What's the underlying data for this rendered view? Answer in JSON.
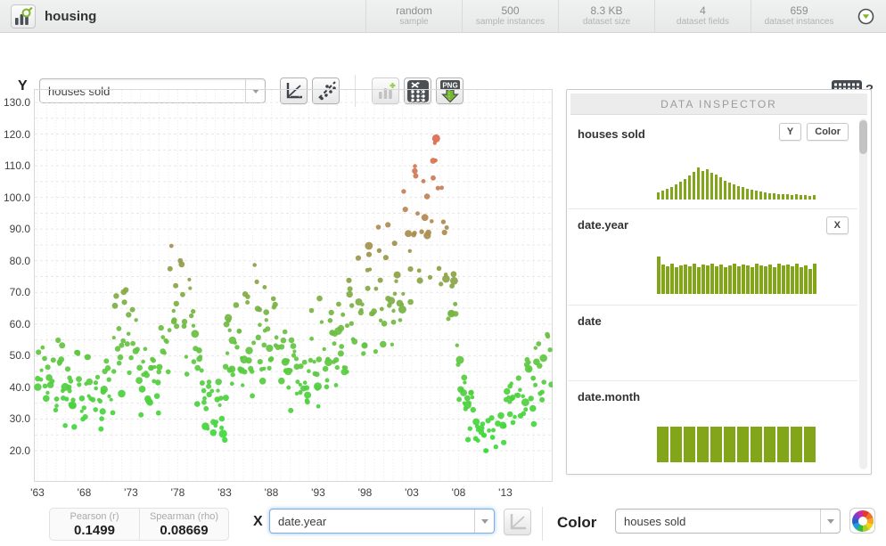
{
  "header": {
    "title": "housing",
    "stats": [
      {
        "value": "random",
        "label": "sample"
      },
      {
        "value": "500",
        "label": "sample instances"
      },
      {
        "value": "8.3 KB",
        "label": "dataset size"
      },
      {
        "value": "4",
        "label": "dataset fields"
      },
      {
        "value": "659",
        "label": "dataset instances"
      }
    ]
  },
  "toolbar": {
    "y_label": "Y",
    "y_select_value": "houses sold",
    "png_label": "PNG",
    "help_label": "?"
  },
  "inspector": {
    "title": "DATA INSPECTOR",
    "bar_color": "#82a51a",
    "fields": [
      {
        "name": "houses sold",
        "badges": [
          "Y",
          "Color"
        ],
        "histogram": [
          8,
          10,
          12,
          14,
          17,
          20,
          23,
          27,
          31,
          36,
          32,
          34,
          30,
          28,
          25,
          21,
          19,
          17,
          15,
          14,
          12,
          11,
          10,
          9,
          8,
          7,
          7,
          6,
          6,
          6,
          5,
          6,
          5,
          5,
          4,
          5
        ]
      },
      {
        "name": "date.year",
        "badges": [
          "X"
        ],
        "histogram": [
          42,
          33,
          31,
          34,
          30,
          32,
          33,
          31,
          34,
          30,
          33,
          32,
          34,
          31,
          33,
          30,
          32,
          34,
          31,
          33,
          32,
          30,
          34,
          32,
          31,
          33,
          30,
          34,
          32,
          33,
          31,
          34,
          30,
          32,
          28,
          34
        ]
      },
      {
        "name": "date",
        "badges": [],
        "histogram": []
      },
      {
        "name": "date.month",
        "badges": [],
        "histogram": [
          40,
          40,
          40,
          40,
          40,
          40,
          40,
          40,
          40,
          40,
          40,
          40
        ]
      }
    ]
  },
  "footer": {
    "pearson_label": "Pearson (r)",
    "pearson_value": "0.1499",
    "spearman_label": "Spearman (rho)",
    "spearman_value": "0.08669",
    "x_label": "X",
    "x_select_value": "date.year",
    "color_label": "Color",
    "color_select_value": "houses sold"
  },
  "chart_data": {
    "type": "scatter",
    "x_field": "date.year",
    "y_field": "houses sold",
    "color_field": "houses sold",
    "y_tick_labels": [
      "130.0",
      "120.0",
      "110.0",
      "100.0",
      "90.0",
      "80.0",
      "70.0",
      "60.0",
      "50.0",
      "40.0",
      "30.0",
      "20.0"
    ],
    "y_tick_values": [
      130,
      120,
      110,
      100,
      90,
      80,
      70,
      60,
      50,
      40,
      30,
      20
    ],
    "y_grid_step": 5,
    "x_tick_labels": [
      "'63",
      "'68",
      "'73",
      "'78",
      "'83",
      "'88",
      "'93",
      "'98",
      "'03",
      "'08",
      "'13"
    ],
    "x_tick_years": [
      1963,
      1968,
      1973,
      1978,
      1983,
      1988,
      1993,
      1998,
      2003,
      2008,
      2013
    ],
    "x_domain": [
      1963,
      2018
    ],
    "y_domain": [
      15,
      135
    ],
    "start_year": 1963,
    "months_total": 659,
    "sample_size": 500,
    "annual_means": [
      47,
      45,
      46,
      38,
      41,
      41,
      37,
      40,
      55,
      60,
      53,
      43,
      45,
      53,
      68,
      68,
      59,
      45,
      34,
      34,
      51,
      53,
      55,
      62,
      56,
      56,
      53,
      45,
      42,
      51,
      55,
      56,
      56,
      62,
      66,
      73,
      74,
      73,
      75,
      81,
      90,
      100,
      107,
      88,
      65,
      40,
      31,
      27,
      25,
      31,
      36,
      37,
      42,
      47,
      51
    ],
    "seasonal_shape": [
      0.8,
      0.92,
      1.12,
      1.12,
      1.1,
      1.06,
      1.02,
      1.0,
      0.93,
      0.95,
      0.85,
      0.78
    ],
    "value_min": 20,
    "value_max": 123,
    "color_stops": [
      [
        20,
        "#3cdb3c"
      ],
      [
        40,
        "#52cf41"
      ],
      [
        55,
        "#68c243"
      ],
      [
        70,
        "#83ab45"
      ],
      [
        85,
        "#a3914e"
      ],
      [
        100,
        "#c08257"
      ],
      [
        112,
        "#d77355"
      ],
      [
        124,
        "#e2654a"
      ]
    ]
  }
}
